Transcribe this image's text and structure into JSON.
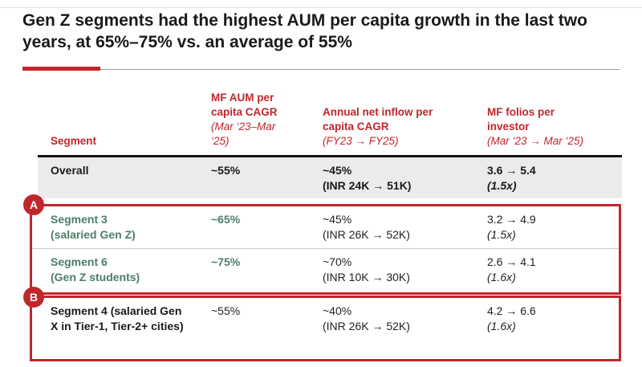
{
  "title": "Gen Z segments had the highest AUM per capita growth in the last two years, at 65%–75% vs. an average of 55%",
  "colors": {
    "accent_red": "#c0262c",
    "segment_green": "#4e7d68",
    "overall_row_bg": "#ebebeb",
    "title_text": "#1a1a1a"
  },
  "table": {
    "headers": [
      {
        "label": "Segment",
        "sublabel": ""
      },
      {
        "label": "MF AUM per capita CAGR",
        "sublabel": "(Mar ‘23–Mar ‘25)"
      },
      {
        "label": "Annual net inflow per capita CAGR",
        "sublabel": "(FY23 → FY25)"
      },
      {
        "label": "MF folios per investor",
        "sublabel": "(Mar ‘23 → Mar ‘25)"
      }
    ],
    "rows": [
      {
        "name": "Overall",
        "sub": "",
        "cagr": "~55%",
        "inflow1": "~45%",
        "inflow2": "(INR 24K → 51K)",
        "folios1": "3.6 → 5.4",
        "folios2": "(1.5x)"
      },
      {
        "name": "Segment 3",
        "sub": "(salaried Gen Z)",
        "cagr": "~65%",
        "inflow1": "~45%",
        "inflow2": "(INR 26K → 52K)",
        "folios1": "3.2 → 4.9",
        "folios2": "(1.5x)"
      },
      {
        "name": "Segment 6",
        "sub": "(Gen Z students)",
        "cagr": "~75%",
        "inflow1": "~70%",
        "inflow2": "(INR 10K → 30K)",
        "folios1": "2.6 → 4.1",
        "folios2": "(1.6x)"
      },
      {
        "name": "Segment 4 (salaried Gen X in Tier-1, Tier-2+ cities)",
        "sub": "",
        "cagr": "~55%",
        "inflow1": "~40%",
        "inflow2": "(INR 26K → 52K)",
        "folios1": "4.2 → 6.6",
        "folios2": "(1.6x)"
      }
    ],
    "badges": [
      {
        "label": "A"
      },
      {
        "label": "B"
      }
    ]
  }
}
